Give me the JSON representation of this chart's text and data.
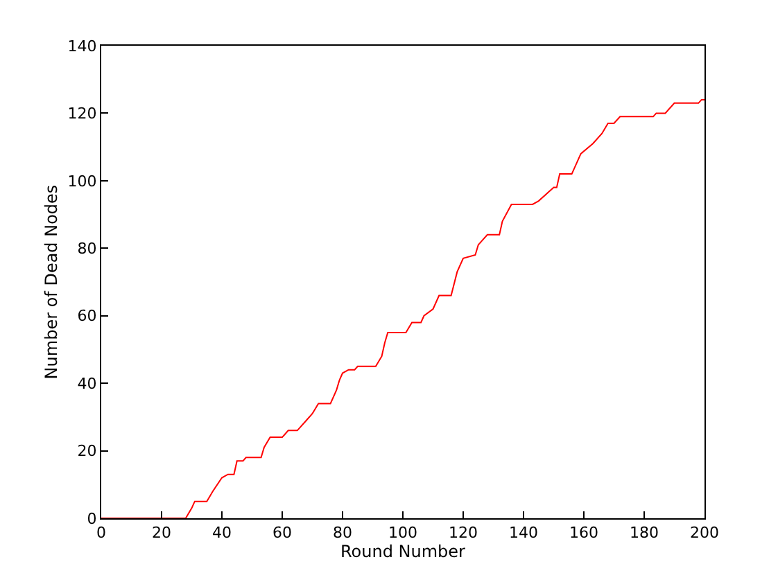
{
  "chart_data": {
    "type": "line",
    "xlabel": "Round Number",
    "ylabel": "Number of Dead Nodes",
    "x": [
      0,
      28,
      30,
      31,
      35,
      37,
      40,
      42,
      44,
      45,
      47,
      48,
      53,
      54,
      56,
      60,
      61,
      62,
      65,
      68,
      70,
      72,
      76,
      78,
      79,
      80,
      82,
      84,
      85,
      91,
      93,
      94,
      95,
      101,
      103,
      106,
      107,
      110,
      112,
      116,
      118,
      120,
      124,
      125,
      128,
      132,
      133,
      136,
      143,
      145,
      150,
      151,
      152,
      156,
      159,
      163,
      166,
      168,
      170,
      172,
      183,
      184,
      187,
      190,
      198,
      199,
      200
    ],
    "series": [
      {
        "color": "#ff0000",
        "values": [
          0,
          0,
          3,
          5,
          5,
          8,
          12,
          13,
          13,
          17,
          17,
          18,
          18,
          21,
          24,
          24,
          25,
          26,
          26,
          29,
          31,
          34,
          34,
          38,
          41,
          43,
          44,
          44,
          45,
          45,
          48,
          52,
          55,
          55,
          58,
          58,
          60,
          62,
          66,
          66,
          73,
          77,
          78,
          81,
          84,
          84,
          88,
          93,
          93,
          94,
          98,
          98,
          102,
          102,
          108,
          111,
          114,
          117,
          117,
          119,
          119,
          120,
          120,
          123,
          123,
          124,
          124
        ]
      }
    ],
    "xlim": [
      0,
      200
    ],
    "xticks": [
      0,
      20,
      40,
      60,
      80,
      100,
      120,
      140,
      160,
      180,
      200
    ],
    "ylim": [
      0,
      140
    ],
    "yticks": [
      0,
      20,
      40,
      60,
      80,
      100,
      120,
      140
    ],
    "marker": "none",
    "line_style": "solid"
  }
}
